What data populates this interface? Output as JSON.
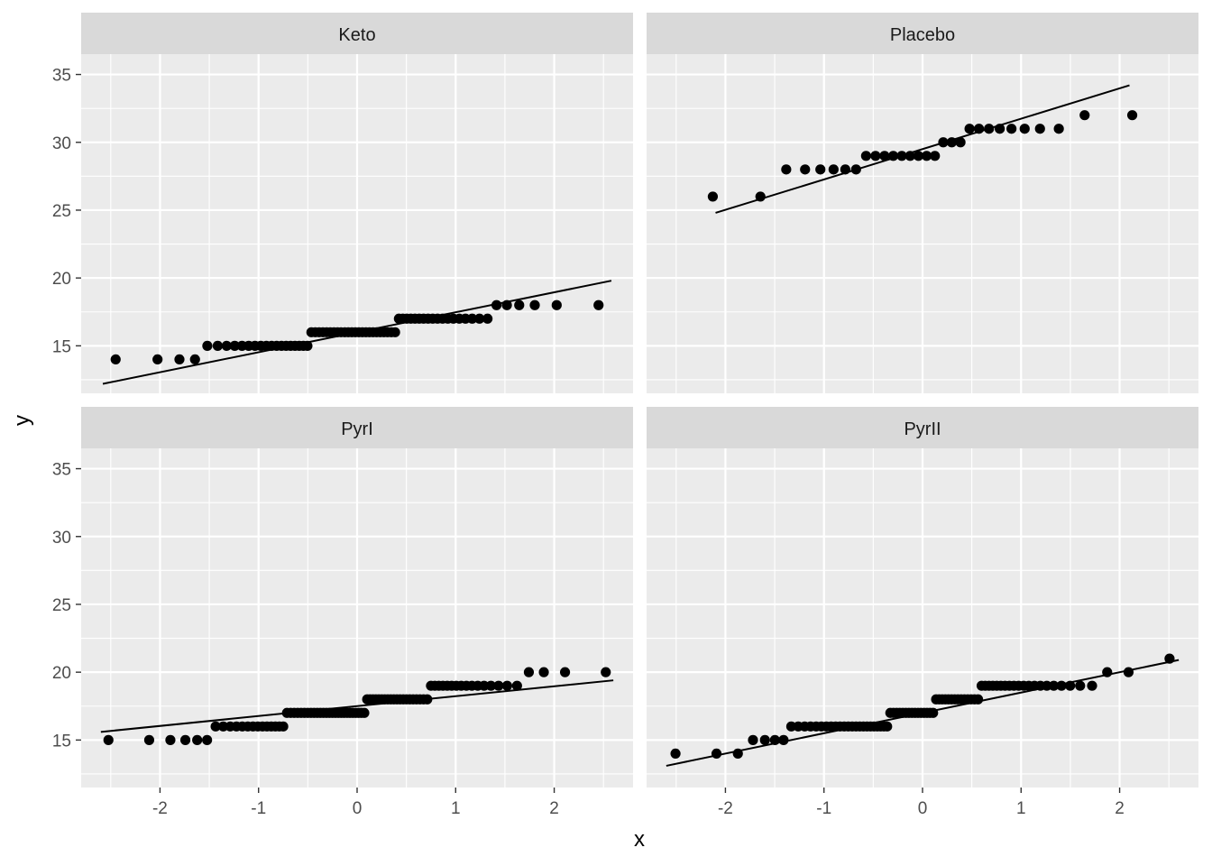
{
  "chart_data": {
    "type": "scatter",
    "subtype": "qq-facet",
    "xlabel": "x",
    "ylabel": "y",
    "xlim": [
      -2.8,
      2.8
    ],
    "ylim": [
      11.5,
      36.5
    ],
    "x_ticks": [
      -2,
      -1,
      0,
      1,
      2
    ],
    "x_tick_labels": [
      "-2",
      "-1",
      "0",
      "1",
      "2"
    ],
    "y_ticks": [
      15,
      20,
      25,
      30,
      35
    ],
    "y_tick_labels": [
      "15",
      "20",
      "25",
      "30",
      "35"
    ],
    "grid": true,
    "point_color": "#000000",
    "line_color": "#000000",
    "panel_bg": "#ebebeb",
    "strip_bg": "#d9d9d9",
    "facets": [
      {
        "label": "Keto",
        "counts": [
          [
            14,
            4
          ],
          [
            15,
            18
          ],
          [
            16,
            24
          ],
          [
            17,
            18
          ],
          [
            18,
            6
          ]
        ],
        "line": {
          "x": [
            -2.58,
            2.58
          ],
          "y": [
            12.2,
            19.8
          ]
        }
      },
      {
        "label": "Placebo",
        "counts": [
          [
            26,
            2
          ],
          [
            28,
            6
          ],
          [
            29,
            9
          ],
          [
            30,
            3
          ],
          [
            31,
            8
          ],
          [
            32,
            2
          ]
        ],
        "line": {
          "x": [
            -2.1,
            2.1
          ],
          "y": [
            24.8,
            34.2
          ]
        }
      },
      {
        "label": "PyrI",
        "counts": [
          [
            15,
            6
          ],
          [
            16,
            14
          ],
          [
            17,
            26
          ],
          [
            18,
            20
          ],
          [
            19,
            16
          ],
          [
            20,
            4
          ]
        ],
        "line": {
          "x": [
            -2.6,
            2.6
          ],
          "y": [
            15.6,
            19.4
          ]
        }
      },
      {
        "label": "PyrII",
        "counts": [
          [
            14,
            3
          ],
          [
            15,
            4
          ],
          [
            16,
            23
          ],
          [
            17,
            15
          ],
          [
            18,
            14
          ],
          [
            19,
            20
          ],
          [
            20,
            2
          ],
          [
            21,
            1
          ]
        ],
        "line": {
          "x": [
            -2.6,
            2.6
          ],
          "y": [
            13.1,
            20.9
          ]
        }
      }
    ]
  }
}
